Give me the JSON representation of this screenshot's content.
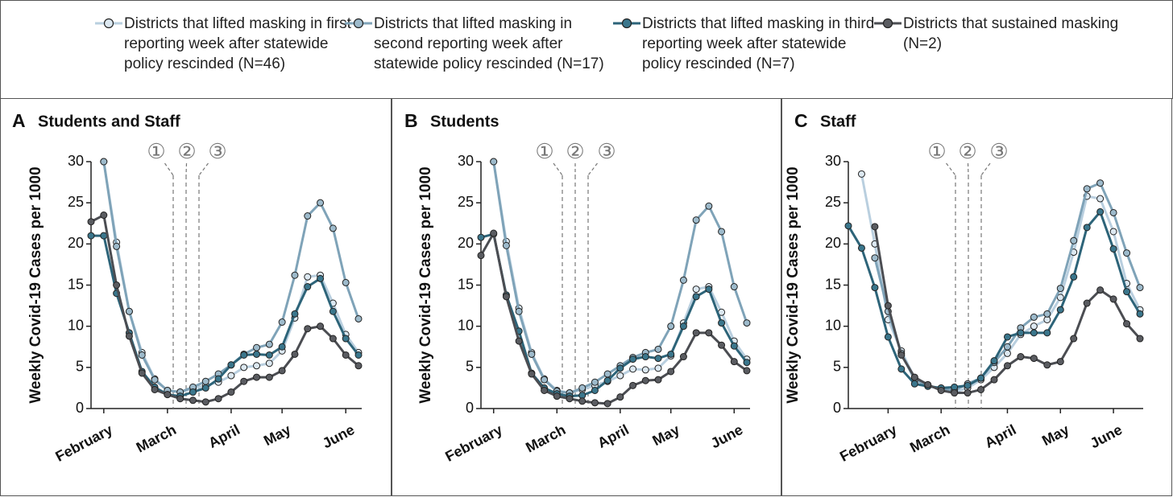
{
  "chart_data": [
    {
      "type": "line",
      "panel": "A",
      "title": "Students and Staff",
      "ylabel": "Weekly Covid-19 Cases per 1000",
      "categories": [
        null,
        "February",
        null,
        null,
        null,
        null,
        "March",
        null,
        null,
        null,
        null,
        "April",
        null,
        null,
        null,
        "May",
        null,
        null,
        null,
        null,
        "June",
        null
      ],
      "ylim": [
        0,
        30
      ],
      "yticks": [
        0,
        5,
        10,
        15,
        20,
        25,
        30
      ],
      "annotations": [
        "①",
        "②",
        "③"
      ],
      "series": [
        {
          "name": "Districts that lifted masking in first reporting week after statewide policy rescinded (N=46)",
          "color": "#b9cfdf",
          "values": [
            null,
            30,
            20.2,
            11.8,
            6.8,
            3.6,
            2.2,
            2.0,
            2.4,
            2.8,
            3.2,
            4.0,
            5.0,
            5.2,
            5.5,
            7.0,
            11,
            16,
            16.2,
            12.8,
            9.0,
            6.8
          ]
        },
        {
          "name": "Districts that lifted masking in second reporting week after statewide policy rescinded (N=17)",
          "color": "#7fa3b8",
          "values": [
            null,
            30,
            19.7,
            11.8,
            6.5,
            3.5,
            2.2,
            2.0,
            2.6,
            3.3,
            4.2,
            5.3,
            6.6,
            7.4,
            7.8,
            10.5,
            16.2,
            23.4,
            25,
            21.9,
            15.3,
            10.9
          ]
        },
        {
          "name": "Districts that lifted masking in third reporting week after statewide policy rescinded (N=7)",
          "color": "#2d6479",
          "values": [
            21,
            21,
            14,
            9.2,
            4.5,
            2.6,
            1.7,
            1.5,
            2.0,
            2.5,
            3.6,
            5.3,
            6.5,
            6.6,
            6.5,
            7.5,
            11.5,
            14.8,
            15.8,
            11.8,
            8.5,
            6.5
          ]
        },
        {
          "name": "Districts that sustained masking (N=2)",
          "color": "#4b4d52",
          "values": [
            22.7,
            23.5,
            15,
            8.8,
            4.3,
            2.3,
            1.7,
            1.2,
            1.0,
            0.8,
            1.2,
            2.0,
            3.3,
            3.8,
            3.8,
            4.6,
            6.6,
            9.7,
            10.0,
            8.5,
            6.5,
            5.2
          ]
        }
      ]
    },
    {
      "type": "line",
      "panel": "B",
      "title": "Students",
      "ylabel": "Weekly Covid-19 Cases per 1000",
      "categories": [
        null,
        "February",
        null,
        null,
        null,
        null,
        "March",
        null,
        null,
        null,
        null,
        "April",
        null,
        null,
        null,
        "May",
        null,
        null,
        null,
        null,
        "June",
        null
      ],
      "ylim": [
        0,
        30
      ],
      "yticks": [
        0,
        5,
        10,
        15,
        20,
        25,
        30
      ],
      "annotations": [
        "①",
        "②",
        "③"
      ],
      "series": [
        {
          "name": "Districts that lifted masking in first reporting week after statewide policy rescinded (N=46)",
          "color": "#b9cfdf",
          "values": [
            null,
            30,
            20.3,
            12.2,
            6.8,
            3.6,
            2.2,
            1.9,
            2.3,
            2.8,
            3.3,
            4.0,
            4.8,
            4.7,
            4.9,
            6.4,
            10.4,
            14.5,
            14.8,
            11.7,
            8.2,
            6.0
          ]
        },
        {
          "name": "Districts that lifted masking in second reporting week after statewide policy rescinded (N=17)",
          "color": "#7fa3b8",
          "values": [
            null,
            30,
            19.8,
            11.8,
            6.6,
            3.5,
            2.1,
            1.9,
            2.5,
            3.2,
            4.2,
            5.2,
            6.2,
            6.8,
            7.2,
            10,
            15.6,
            22.9,
            24.6,
            21.5,
            14.8,
            10.4
          ]
        },
        {
          "name": "Districts that lifted masking in third reporting week after statewide policy rescinded (N=7)",
          "color": "#2d6479",
          "values": [
            20.8,
            21.2,
            13.8,
            9.4,
            4.3,
            2.5,
            1.8,
            1.5,
            1.6,
            2.2,
            3.4,
            4.9,
            6.0,
            6.3,
            6.1,
            6.6,
            10,
            13.6,
            14.5,
            10.4,
            7.6,
            5.6
          ]
        },
        {
          "name": "Districts that sustained masking (N=2)",
          "color": "#4b4d52",
          "values": [
            18.6,
            21.3,
            13.6,
            8.2,
            4.2,
            2.2,
            1.5,
            1.2,
            0.9,
            0.7,
            0.6,
            1.4,
            2.8,
            3.4,
            3.5,
            4.5,
            6.3,
            9.2,
            9.2,
            7.7,
            5.7,
            4.6
          ]
        }
      ]
    },
    {
      "type": "line",
      "panel": "C",
      "title": "Staff",
      "ylabel": "Weekly Covid-19 Cases per 1000",
      "categories": [
        null,
        null,
        null,
        "February",
        null,
        null,
        null,
        "March",
        null,
        null,
        null,
        null,
        "April",
        null,
        null,
        null,
        "May",
        null,
        null,
        null,
        "June",
        null,
        null
      ],
      "ylim": [
        0,
        30
      ],
      "yticks": [
        0,
        5,
        10,
        15,
        20,
        25,
        30
      ],
      "annotations": [
        "①",
        "②",
        "③"
      ],
      "series": [
        {
          "name": "Districts that lifted masking in first reporting week after statewide policy rescinded (N=46)",
          "color": "#b9cfdf",
          "values": [
            null,
            28.5,
            20.0,
            10.8,
            7.0,
            3.7,
            2.8,
            2.3,
            2.0,
            2.5,
            3.5,
            5.0,
            6.7,
            9.0,
            10.0,
            10.8,
            13.5,
            19,
            25.8,
            25.5,
            21.5,
            15.2,
            12.0
          ]
        },
        {
          "name": "Districts that lifted masking in second reporting week after statewide policy rescinded (N=17)",
          "color": "#7fa3b8",
          "values": [
            null,
            null,
            18.3,
            11.8,
            6.7,
            3.5,
            2.8,
            2.4,
            2.2,
            3.0,
            3.7,
            5.6,
            7.5,
            9.8,
            11.1,
            11.5,
            14.6,
            20.4,
            26.7,
            27.4,
            23.8,
            18.9,
            14.7
          ]
        },
        {
          "name": "Districts that lifted masking in third reporting week after statewide policy rescinded (N=7)",
          "color": "#2d6479",
          "values": [
            22.2,
            19.5,
            14.7,
            8.7,
            4.8,
            3.0,
            2.7,
            2.5,
            2.6,
            2.8,
            3.7,
            5.8,
            8.7,
            9.2,
            9.2,
            9.2,
            12,
            16,
            22,
            23.9,
            19.4,
            14.2,
            11.5
          ]
        },
        {
          "name": "Districts that sustained masking (N=2)",
          "color": "#4b4d52",
          "values": [
            null,
            null,
            22.1,
            12.5,
            6.5,
            3.8,
            2.9,
            2.2,
            1.9,
            1.9,
            2.3,
            3.5,
            5.2,
            6.3,
            6.1,
            5.3,
            5.7,
            8.5,
            12.8,
            14.4,
            13.3,
            10.3,
            8.5
          ]
        }
      ]
    }
  ]
}
